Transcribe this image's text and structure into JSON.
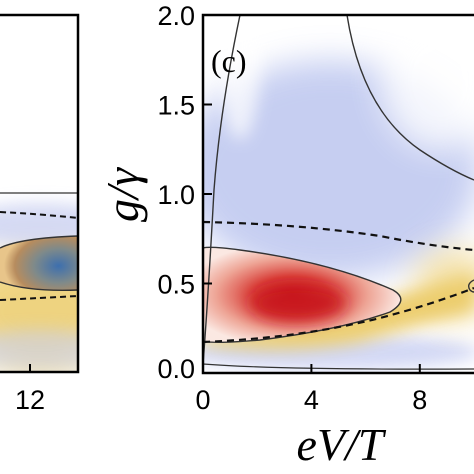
{
  "chart_data": [
    {
      "type": "heatmap",
      "panel": "left (partially visible)",
      "x_tick_labels": [
        "12"
      ],
      "visible_features": [
        "colored ellipse region around y~0.5",
        "dashed contour lines"
      ]
    },
    {
      "type": "heatmap",
      "panel_label": "(c)",
      "xlabel": "eV/T",
      "ylabel": "g/γ",
      "xlim": [
        0,
        10
      ],
      "ylim": [
        0,
        2
      ],
      "x_ticks": [
        0,
        4,
        8
      ],
      "x_tick_labels": [
        "0",
        "4",
        "8"
      ],
      "y_ticks": [
        0.0,
        0.5,
        1.0,
        1.5,
        2.0
      ],
      "y_tick_labels": [
        "0.0",
        "0.5",
        "1.0",
        "1.5",
        "2.0"
      ],
      "colors": {
        "positive_peak": "#c8161c",
        "positive_mid": "#f1b3a4",
        "warm_band": "#eccc6a",
        "negative": "#b8c2ee",
        "contour": "#333333"
      },
      "features": [
        {
          "kind": "hotspot",
          "center": [
            4.5,
            0.37
          ],
          "sign": "positive"
        },
        {
          "kind": "solid-contour",
          "description": "closed loop enclosing red region",
          "x_range": [
            0,
            7.4
          ],
          "y_range": [
            0.16,
            0.69
          ]
        },
        {
          "kind": "dashed-contour",
          "y_at_x0": 0.83,
          "y_at_x10": 0.62
        },
        {
          "kind": "dashed-contour",
          "y_at_x0": 0.17,
          "y_at_x10": 0.46
        },
        {
          "kind": "solid-contour",
          "description": "upper boundary of blue region",
          "y_at_x0": 0.05
        }
      ]
    }
  ]
}
